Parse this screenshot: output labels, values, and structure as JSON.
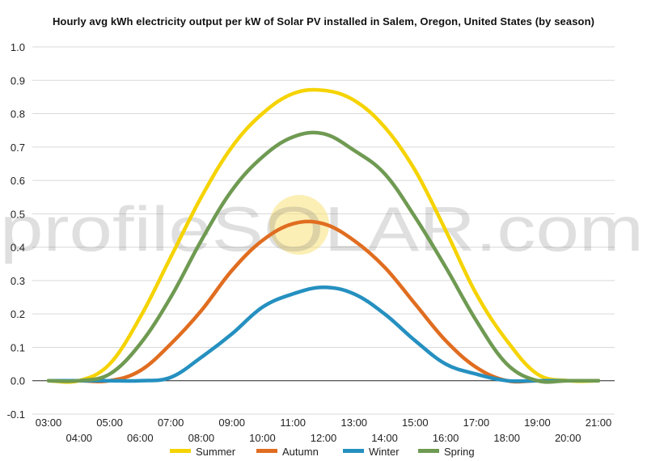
{
  "watermark": {
    "brand": "profileSOLAR.com"
  },
  "colors": {
    "Summer": "#f5d300",
    "Autumn": "#e06d20",
    "Winter": "#2590c0",
    "Spring": "#6f9a52",
    "grid": "#d9d9d9",
    "zero_line": "#222222"
  },
  "chart_data": {
    "type": "line",
    "title": "Hourly avg kWh electricity output per kW of Solar PV installed in Salem, Oregon, United States (by season)",
    "xlabel": "",
    "ylabel": "",
    "ylim": [
      -0.1,
      1.0
    ],
    "yticks": [
      "-0.1",
      "0.0",
      "0.1",
      "0.2",
      "0.3",
      "0.4",
      "0.5",
      "0.6",
      "0.7",
      "0.8",
      "0.9",
      "1.0"
    ],
    "x": [
      "03:00",
      "04:00",
      "05:00",
      "06:00",
      "07:00",
      "08:00",
      "09:00",
      "10:00",
      "11:00",
      "12:00",
      "13:00",
      "14:00",
      "15:00",
      "16:00",
      "17:00",
      "18:00",
      "19:00",
      "20:00",
      "21:00"
    ],
    "grid": true,
    "legend": "bottom",
    "series": [
      {
        "name": "Summer",
        "values": [
          0.0,
          0.0,
          0.05,
          0.19,
          0.37,
          0.55,
          0.7,
          0.8,
          0.86,
          0.87,
          0.84,
          0.76,
          0.63,
          0.45,
          0.26,
          0.12,
          0.02,
          0.0,
          0.0
        ]
      },
      {
        "name": "Autumn",
        "values": [
          0.0,
          0.0,
          0.0,
          0.03,
          0.11,
          0.21,
          0.33,
          0.42,
          0.47,
          0.47,
          0.42,
          0.34,
          0.23,
          0.12,
          0.04,
          0.0,
          0.0,
          0.0,
          0.0
        ]
      },
      {
        "name": "Winter",
        "values": [
          0.0,
          0.0,
          0.0,
          0.0,
          0.01,
          0.07,
          0.14,
          0.22,
          0.26,
          0.28,
          0.26,
          0.2,
          0.12,
          0.05,
          0.02,
          0.0,
          0.0,
          0.0,
          0.0
        ]
      },
      {
        "name": "Spring",
        "values": [
          0.0,
          0.0,
          0.02,
          0.11,
          0.25,
          0.42,
          0.57,
          0.67,
          0.73,
          0.74,
          0.69,
          0.62,
          0.49,
          0.34,
          0.18,
          0.05,
          0.0,
          0.0,
          0.0
        ]
      }
    ]
  }
}
